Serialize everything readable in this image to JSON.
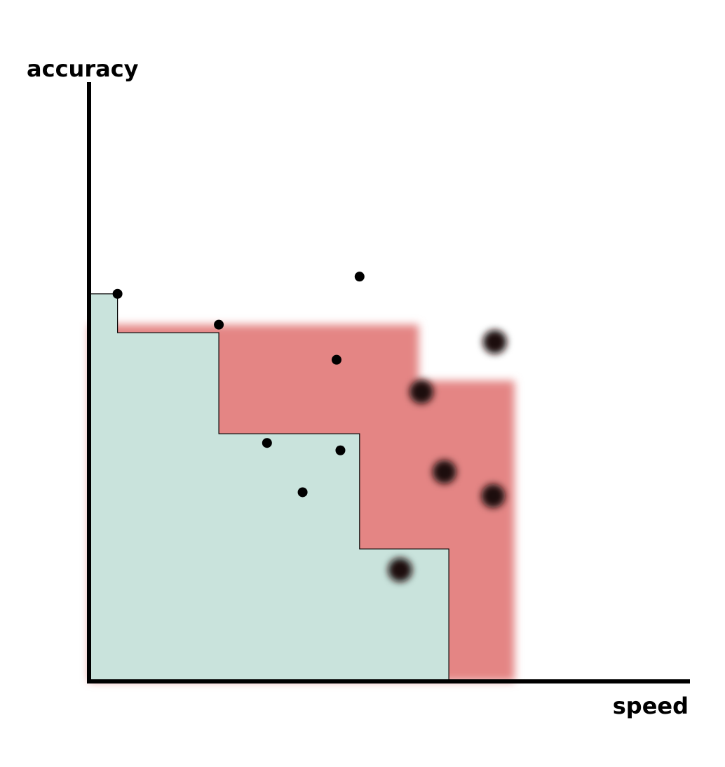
{
  "chart_data": {
    "type": "scatter",
    "xlabel": "speed",
    "ylabel": "accuracy",
    "xlim": [
      0,
      100
    ],
    "ylim": [
      0,
      100
    ],
    "grid": false,
    "colors": {
      "dominated_region": "#c9e3dc",
      "improvement_region": "#e48584",
      "point": "#000000",
      "highlight_point": "#1c0c0c",
      "frontier_line": "#000000",
      "axis": "#000000"
    },
    "series": [
      {
        "points": [
          {
            "x": 5.2,
            "y": 62.9
          },
          {
            "x": 23.7,
            "y": 57.9
          },
          {
            "x": 49.4,
            "y": 65.7
          },
          {
            "x": 32.5,
            "y": 38.7
          },
          {
            "x": 45.2,
            "y": 52.2
          },
          {
            "x": 45.9,
            "y": 37.5
          },
          {
            "x": 39.0,
            "y": 30.7
          }
        ]
      }
    ],
    "highlighted": [
      {
        "x": 74.1,
        "y": 55.1
      },
      {
        "x": 60.7,
        "y": 47.0
      },
      {
        "x": 64.9,
        "y": 34.0
      },
      {
        "x": 56.8,
        "y": 18.1
      },
      {
        "x": 73.8,
        "y": 30.1
      }
    ],
    "frontier_current": [
      {
        "x": 5.2,
        "y": 56.6
      },
      {
        "x": 23.7,
        "y": 40.2
      },
      {
        "x": 49.4,
        "y": 21.5
      },
      {
        "x": 65.7,
        "y": 0
      }
    ],
    "frontier_improved": [
      {
        "x": 44.3,
        "y": 57.9
      },
      {
        "x": 60.2,
        "y": 48.8
      },
      {
        "x": 77.7,
        "y": 29.8
      },
      {
        "x": 77.7,
        "y": 0
      }
    ]
  }
}
